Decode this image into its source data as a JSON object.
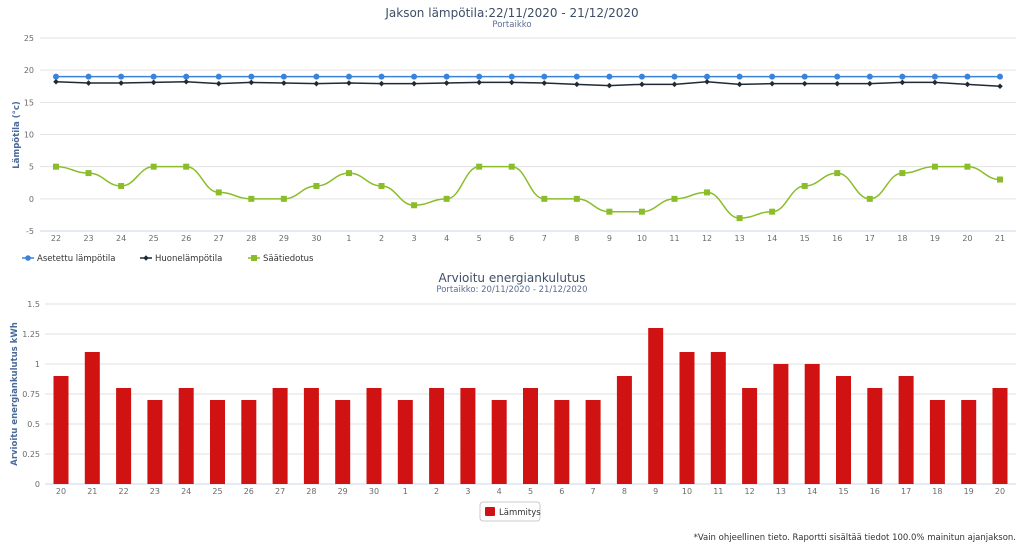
{
  "footnote": "*Vain ohjeellinen tieto. Raportti sisältää tiedot 100.0% mainitun ajanjakson.",
  "chart_data": [
    {
      "type": "line",
      "title": "Jakson lämpötila:22/11/2020 - 21/12/2020",
      "subtitle": "Portaikko",
      "xlabel": "",
      "ylabel": "Lämpötila (°c)",
      "ylim": [
        -5,
        25
      ],
      "yticks": [
        "-5",
        "0",
        "5",
        "10",
        "15",
        "20",
        "25"
      ],
      "yticks_values": [
        -5,
        0,
        5,
        10,
        15,
        20,
        25
      ],
      "grid": true,
      "legend_position": "bottom-left",
      "categories": [
        "22",
        "23",
        "24",
        "25",
        "26",
        "27",
        "28",
        "29",
        "30",
        "1",
        "2",
        "3",
        "4",
        "5",
        "6",
        "7",
        "8",
        "9",
        "10",
        "11",
        "12",
        "13",
        "14",
        "15",
        "16",
        "17",
        "18",
        "19",
        "20",
        "21"
      ],
      "series": [
        {
          "name": "Asetettu lämpötila",
          "color": "#3b83d8",
          "marker": "circle",
          "values": [
            19,
            19,
            19,
            19,
            19,
            19,
            19,
            19,
            19,
            19,
            19,
            19,
            19,
            19,
            19,
            19,
            19,
            19,
            19,
            19,
            19,
            19,
            19,
            19,
            19,
            19,
            19,
            19,
            19,
            19
          ]
        },
        {
          "name": "Huonelämpötila",
          "color": "#1f2a36",
          "marker": "diamond",
          "values": [
            18.2,
            18.0,
            18.0,
            18.1,
            18.2,
            17.9,
            18.1,
            18.0,
            17.9,
            18.0,
            17.9,
            17.9,
            18.0,
            18.1,
            18.1,
            18.0,
            17.8,
            17.6,
            17.8,
            17.8,
            18.2,
            17.8,
            17.9,
            17.9,
            17.9,
            17.9,
            18.1,
            18.1,
            17.8,
            17.5
          ]
        },
        {
          "name": "Säätiedotus",
          "color": "#8bbd2a",
          "marker": "square",
          "values": [
            5,
            4,
            2,
            5,
            5,
            1,
            0,
            0,
            2,
            4,
            2,
            -1,
            0,
            5,
            5,
            0,
            0,
            -2,
            -2,
            0,
            1,
            -3,
            -2,
            2,
            4,
            0,
            4,
            5,
            5,
            3
          ]
        }
      ]
    },
    {
      "type": "bar",
      "title": "Arvioitu energiankulutus",
      "subtitle": "Portaikko: 20/11/2020 - 21/12/2020",
      "xlabel": "",
      "ylabel": "Arvioitu energiankulutus kWh",
      "ylim": [
        0,
        1.5
      ],
      "yticks": [
        "0",
        "0.25",
        "0.5",
        "0.75",
        "1",
        "1.25",
        "1.5"
      ],
      "yticks_values": [
        0,
        0.25,
        0.5,
        0.75,
        1,
        1.25,
        1.5
      ],
      "grid": true,
      "legend_position": "bottom-center",
      "categories": [
        "20",
        "21",
        "22",
        "23",
        "24",
        "25",
        "26",
        "27",
        "28",
        "29",
        "30",
        "1",
        "2",
        "3",
        "4",
        "5",
        "6",
        "7",
        "8",
        "9",
        "10",
        "11",
        "12",
        "13",
        "14",
        "15",
        "16",
        "17",
        "18",
        "19",
        "20"
      ],
      "series": [
        {
          "name": "Lämmitys",
          "color": "#d01212",
          "values": [
            0.9,
            1.1,
            0.8,
            0.7,
            0.8,
            0.7,
            0.7,
            0.8,
            0.8,
            0.7,
            0.8,
            0.7,
            0.8,
            0.8,
            0.7,
            0.8,
            0.7,
            0.7,
            0.9,
            1.3,
            1.1,
            1.1,
            0.8,
            1.0,
            1.0,
            0.9,
            0.8,
            0.9,
            0.7,
            0.7,
            0.8
          ]
        }
      ]
    }
  ]
}
